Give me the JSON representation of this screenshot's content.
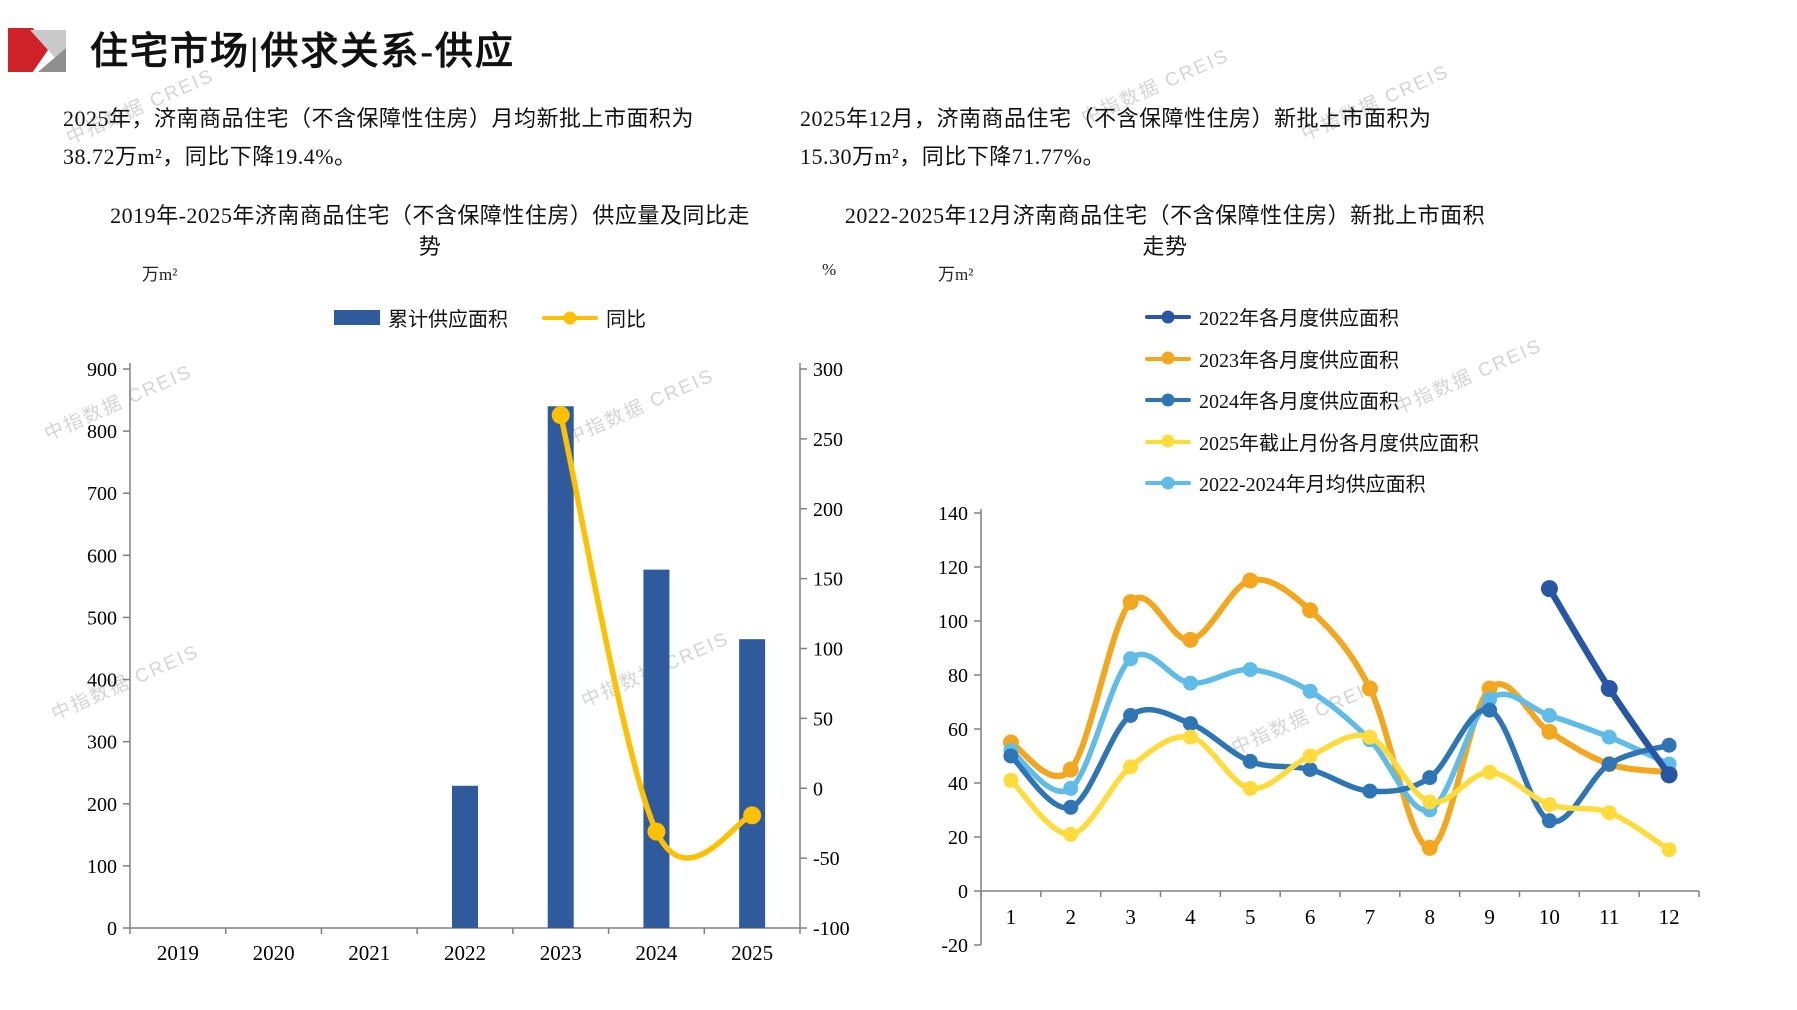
{
  "header": {
    "title": "住宅市场|供求关系-供应"
  },
  "watermark": {
    "text": "中指数据 CREIS"
  },
  "left_panel": {
    "summary_line1": "2025年，济南商品住宅（不含保障性住房）月均新批上市面积为",
    "summary_line2": "38.72万m²，同比下降19.4%。",
    "title_line1": "2019年-2025年济南商品住宅（不含保障性住房）供应量及同比走",
    "title_line2": "势",
    "unit_left": "万m²",
    "unit_right": "%",
    "legend": [
      {
        "label": "累计供应面积",
        "color": "#2F5B9C",
        "type": "bar"
      },
      {
        "label": "同比",
        "color": "#FFC000",
        "type": "line"
      }
    ]
  },
  "right_panel": {
    "summary_line1": "2025年12月，济南商品住宅（不含保障性住房）新批上市面积为",
    "summary_line2": "15.30万m²，同比下降71.77%。",
    "title_line1": "2022-2025年12月济南商品住宅（不含保障性住房）新批上市面积",
    "title_line2": "走势",
    "unit_left": "万m²"
  },
  "chart_data": [
    {
      "type": "bar+line",
      "title": "2019年-2025年济南商品住宅（不含保障性住房）供应量及同比走势",
      "categories": [
        "2019",
        "2020",
        "2021",
        "2022",
        "2023",
        "2024",
        "2025"
      ],
      "series": [
        {
          "name": "累计供应面积",
          "type": "bar",
          "axis": "left",
          "color": "#2F5B9C",
          "values": [
            null,
            null,
            null,
            229,
            840,
            577,
            465
          ]
        },
        {
          "name": "同比",
          "type": "line",
          "axis": "right",
          "color": "#FFC000",
          "values": [
            null,
            null,
            null,
            null,
            267,
            -31,
            -19.4
          ]
        }
      ],
      "y_left": {
        "label": "万m²",
        "min": 0,
        "max": 900,
        "step": 100,
        "ticks": [
          0,
          100,
          200,
          300,
          400,
          500,
          600,
          700,
          800,
          900
        ]
      },
      "y_right": {
        "label": "%",
        "min": -100,
        "max": 300,
        "step": 50,
        "ticks": [
          -100,
          -50,
          0,
          50,
          100,
          150,
          200,
          250,
          300
        ]
      },
      "legend_position": "top",
      "grid": false
    },
    {
      "type": "line",
      "title": "2022-2025年12月济南商品住宅（不含保障性住房）新批上市面积走势",
      "x_categories": [
        "1",
        "2",
        "3",
        "4",
        "5",
        "6",
        "7",
        "8",
        "9",
        "10",
        "11",
        "12"
      ],
      "ylabel": "万m²",
      "ylim": [
        -20,
        140
      ],
      "ystep": 20,
      "yticks": [
        -20,
        0,
        20,
        40,
        60,
        80,
        100,
        120,
        140
      ],
      "grid": false,
      "legend_position": "top-right",
      "series": [
        {
          "name": "2022年各月度供应面积",
          "color": "#2656A4",
          "width": 6.5,
          "values": [
            null,
            null,
            null,
            null,
            null,
            null,
            null,
            null,
            null,
            112,
            75,
            43
          ]
        },
        {
          "name": "2023年各月度供应面积",
          "color": "#F2A71E",
          "width": 6,
          "values": [
            55,
            45,
            107,
            93,
            115,
            104,
            75,
            16,
            75,
            59,
            47,
            44
          ]
        },
        {
          "name": "2024年各月度供应面积",
          "color": "#2E75B6",
          "width": 5.5,
          "values": [
            50,
            31,
            65,
            62,
            48,
            45,
            37,
            42,
            67,
            26,
            47,
            54
          ]
        },
        {
          "name": "2025年截止月份各月度供应面积",
          "color": "#FFDC3C",
          "width": 5.5,
          "values": [
            41,
            21,
            46,
            57,
            38,
            50,
            57,
            33,
            44,
            32,
            29,
            15.3
          ]
        },
        {
          "name": "2022-2024年月均供应面积",
          "color": "#5FBCE9",
          "width": 5.5,
          "values": [
            52,
            38,
            86,
            77,
            82,
            74,
            56,
            30,
            71,
            65,
            57,
            47
          ]
        }
      ]
    }
  ]
}
